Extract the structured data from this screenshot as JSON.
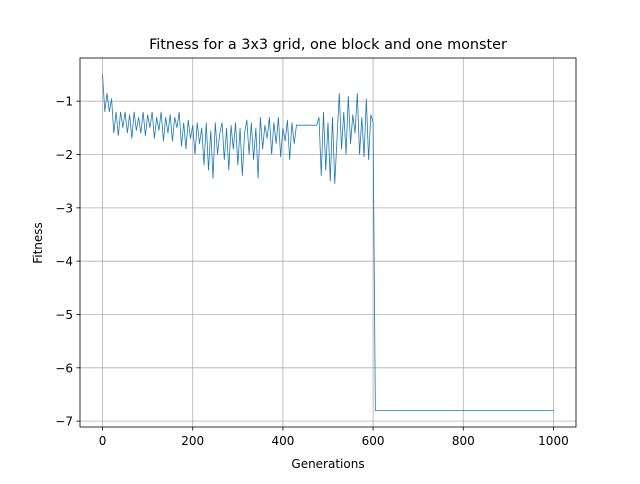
{
  "chart_data": {
    "type": "line",
    "title": "Fitness for a 3x3 grid, one block and one monster",
    "x_label": "Generations",
    "y_label": "Fitness",
    "x": [
      0,
      5,
      10,
      15,
      20,
      25,
      30,
      35,
      40,
      45,
      50,
      55,
      60,
      65,
      70,
      75,
      80,
      85,
      90,
      95,
      100,
      105,
      110,
      115,
      120,
      125,
      130,
      135,
      140,
      145,
      150,
      155,
      160,
      165,
      170,
      175,
      180,
      185,
      190,
      195,
      200,
      205,
      210,
      215,
      220,
      225,
      230,
      235,
      240,
      245,
      250,
      255,
      260,
      265,
      270,
      275,
      280,
      285,
      290,
      295,
      300,
      305,
      310,
      315,
      320,
      325,
      330,
      335,
      340,
      345,
      350,
      355,
      360,
      365,
      370,
      375,
      380,
      385,
      390,
      395,
      400,
      405,
      410,
      415,
      420,
      425,
      430,
      435,
      440,
      445,
      450,
      455,
      460,
      465,
      470,
      475,
      480,
      485,
      490,
      495,
      500,
      505,
      510,
      515,
      520,
      525,
      530,
      535,
      540,
      545,
      550,
      555,
      560,
      565,
      570,
      575,
      580,
      585,
      590,
      595,
      600,
      605,
      1000
    ],
    "series": [
      {
        "name": "Fitness",
        "color": "#1f77b4",
        "values": [
          -0.5,
          -1.2,
          -0.85,
          -1.2,
          -0.95,
          -1.6,
          -1.2,
          -1.65,
          -1.2,
          -1.5,
          -1.2,
          -1.6,
          -1.25,
          -1.7,
          -1.2,
          -1.55,
          -1.3,
          -1.6,
          -1.2,
          -1.65,
          -1.25,
          -1.5,
          -1.2,
          -1.7,
          -1.3,
          -1.55,
          -1.2,
          -1.75,
          -1.3,
          -1.6,
          -1.25,
          -1.75,
          -1.3,
          -1.5,
          -1.2,
          -1.85,
          -1.4,
          -1.9,
          -1.35,
          -1.7,
          -1.45,
          -2.0,
          -1.4,
          -1.8,
          -1.5,
          -2.2,
          -1.4,
          -2.3,
          -1.55,
          -2.45,
          -1.4,
          -2.0,
          -1.6,
          -1.4,
          -2.1,
          -1.5,
          -2.3,
          -1.45,
          -1.9,
          -1.4,
          -2.2,
          -1.5,
          -2.4,
          -1.6,
          -1.35,
          -2.0,
          -1.4,
          -2.1,
          -1.5,
          -2.45,
          -1.3,
          -1.9,
          -1.45,
          -1.7,
          -1.3,
          -2.0,
          -1.4,
          -1.8,
          -1.3,
          -2.05,
          -1.5,
          -1.75,
          -1.35,
          -2.1,
          -1.4,
          -1.8,
          -1.45,
          -1.45,
          -1.45,
          -1.45,
          -1.45,
          -1.45,
          -1.45,
          -1.45,
          -1.45,
          -1.45,
          -1.3,
          -2.4,
          -1.2,
          -2.3,
          -1.4,
          -2.5,
          -1.3,
          -2.55,
          -1.7,
          -0.85,
          -1.9,
          -1.2,
          -2.0,
          -0.9,
          -1.8,
          -1.25,
          -1.6,
          -0.85,
          -2.0,
          -1.3,
          -2.05,
          -0.95,
          -2.1,
          -1.25,
          -1.4,
          -6.8,
          -6.8
        ]
      }
    ],
    "xlim": [
      -50,
      1050
    ],
    "ylim": [
      -7.11,
      -0.19
    ],
    "xticks": [
      0,
      200,
      400,
      600,
      800,
      1000
    ],
    "yticks": [
      {
        "value": -7,
        "label": "−7"
      },
      {
        "value": -6,
        "label": "−6"
      },
      {
        "value": -5,
        "label": "−5"
      },
      {
        "value": -4,
        "label": "−4"
      },
      {
        "value": -3,
        "label": "−3"
      },
      {
        "value": -2,
        "label": "−2"
      },
      {
        "value": -1,
        "label": "−1"
      }
    ],
    "grid": true
  }
}
